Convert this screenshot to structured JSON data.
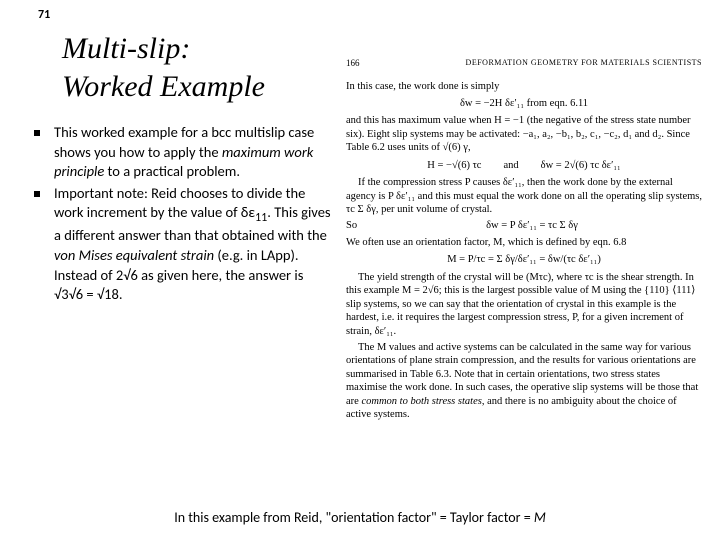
{
  "pageNumber": "71",
  "title": "Multi-slip:\nWorked Example",
  "bullets": [
    {
      "pre": "This worked example for a bcc multislip case shows you how to apply the ",
      "em": "maximum work principle",
      "post": " to a practical problem."
    },
    {
      "pre": "Important note: Reid chooses to divide the work increment by the value of δε",
      "sub": "11",
      "mid": ". This gives a different answer than that obtained with the ",
      "em": "von Mises equivalent strain",
      "post2": " (e.g. in LApp). Instead of 2√6 as given here, the answer is √3√6 = √18."
    }
  ],
  "book": {
    "headerNum": "166",
    "headerTitle": "DEFORMATION GEOMETRY FOR MATERIALS SCIENTISTS",
    "line1": "In this case, the work done is simply",
    "eq1": "δw = −2H δε′₁₁    from eqn. 6.11",
    "para2": "and this has maximum value when H = −1 (the negative of the stress state number six). Eight slip systems may be activated: −a₁, a₂, −b₁, b₂, c₁, −c₂, d₁ and d₂. Since Table 6.2 uses units of √(6) γ,",
    "eq2a": "H = −√(6) τc",
    "eq2b": "δw = 2√(6) τc δε′₁₁",
    "eqAnd": "and",
    "para3": "If the compression stress P causes δε′₁₁, then the work done by the external agency is P δε′₁₁ and this must equal the work done on all the operating slip systems, τc Σ δγ, per unit volume of crystal.",
    "soLabel": "So",
    "eq3": "δw = P δε′₁₁ = τc Σ δγ",
    "para4": "We often use an orientation factor, M, which is defined by eqn. 6.8",
    "eq4": "M = P/τc = Σ δγ/δε′₁₁ = δw/(τc δε′₁₁)",
    "para5": "The yield strength of the crystal will be (Mτc), where τc is the shear strength. In this example M = 2√6; this is the largest possible value of M using the {110} ⟨111⟩ slip systems, so we can say that the orientation of crystal in this example is the hardest, i.e. it requires the largest compression stress, P, for a given increment of strain, δε′₁₁.",
    "para6": "The M values and active systems can be calculated in the same way for various orientations of plane strain compression, and the results for various orientations are summarised in Table 6.3. Note that in certain orientations, two stress states maximise the work done. In such cases, the operative slip systems will be those that are common to both stress states, and there is no ambiguity about the choice of active systems."
  },
  "footer": {
    "pre": "In this example from Reid, \"orientation factor\" = Taylor factor = ",
    "em": "M"
  }
}
